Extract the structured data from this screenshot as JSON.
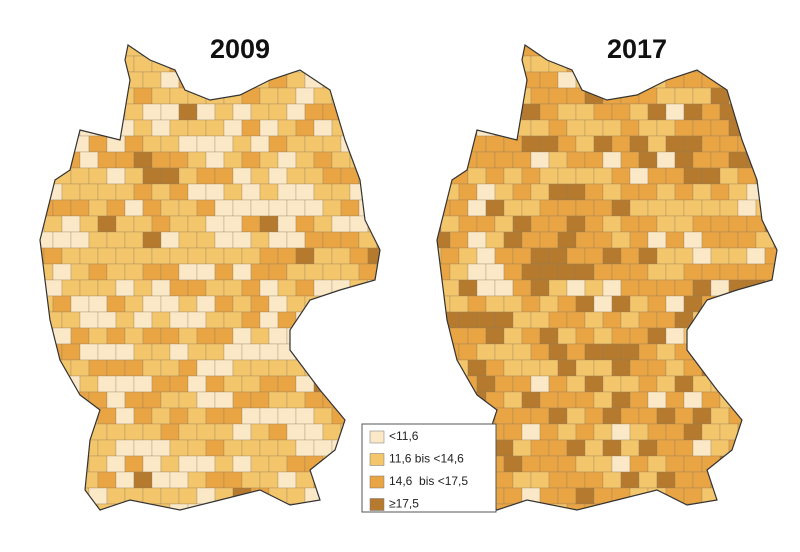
{
  "maps": [
    {
      "title": "2009"
    },
    {
      "title": "2017"
    }
  ],
  "legend": [
    {
      "label": "<11,6",
      "color": "#fbe8c6"
    },
    {
      "label": "11,6 bis <14,6",
      "color": "#f4c66c"
    },
    {
      "label": "14,6  bis <17,5",
      "color": "#e9a444"
    },
    {
      "label": "≥17,5",
      "color": "#b67a2f"
    }
  ]
}
